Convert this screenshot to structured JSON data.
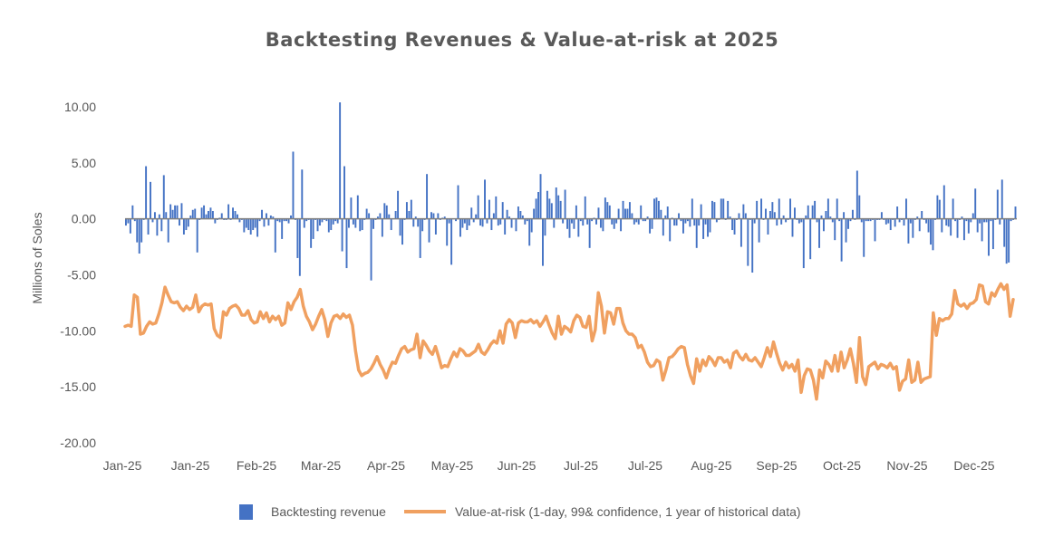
{
  "chart_data": {
    "type": "bar+line",
    "title": "Backtesting Revenues & Value-at-risk at 2025",
    "xlabel": "",
    "ylabel": "Millions of Soles",
    "ylim": [
      -20,
      10
    ],
    "yticks": [
      10,
      5,
      0,
      -5,
      -10,
      -15,
      -20
    ],
    "ytick_labels": [
      "10.00",
      "5.00",
      "0.00",
      "-5.00",
      "-10.00",
      "-15.00",
      "-20.00"
    ],
    "xtick_labels": [
      "Jan-25",
      "Jan-25",
      "Feb-25",
      "Mar-25",
      "Apr-25",
      "May-25",
      "Jun-25",
      "Jul-25",
      "Jul-25",
      "Aug-25",
      "Sep-25",
      "Oct-25",
      "Nov-25",
      "Dec-25"
    ],
    "grid": false,
    "legend_position": "bottom",
    "colors": {
      "bars": "#4472C4",
      "line": "#ED7D31",
      "zero_line": "#808080",
      "text": "#595959"
    },
    "series": [
      {
        "name": "Backtesting revenue",
        "type": "bar",
        "values": [
          -0.6,
          -0.4,
          -1.3,
          1.2,
          -0.2,
          -2.1,
          -3.1,
          -2.1,
          -0.1,
          4.7,
          -1.4,
          3.3,
          -0.3,
          0.6,
          -1.5,
          0.4,
          -1.1,
          3.9,
          0.6,
          -2.1,
          1.3,
          0.8,
          1.2,
          1.2,
          -0.6,
          1.4,
          -1.4,
          -1.0,
          -0.7,
          0.3,
          0.8,
          0.9,
          -3.0,
          -0.1,
          1.0,
          1.2,
          0.4,
          0.7,
          1.0,
          0.7,
          -0.4,
          -0.1,
          0.1,
          0.5,
          -0.1,
          -0.1,
          1.3,
          -0.1,
          1.0,
          0.7,
          0.4,
          -0.3,
          -0.1,
          -1.2,
          -0.8,
          -1.0,
          -1.4,
          -1.0,
          -0.8,
          -1.6,
          -0.2,
          0.8,
          -0.7,
          0.5,
          -0.6,
          0.3,
          0.2,
          -3.0,
          -0.2,
          -0.3,
          -1.8,
          -0.2,
          -0.2,
          -0.4,
          0.3,
          6.0,
          -0.1,
          -3.5,
          -5.1,
          4.4,
          -0.8,
          -0.2,
          -0.1,
          -2.6,
          -1.8,
          -0.1,
          -1.1,
          -0.6,
          -0.3,
          -0.1,
          -0.2,
          -1.2,
          -1.0,
          -0.5,
          -0.2,
          -0.4,
          10.4,
          -2.9,
          4.7,
          -4.4,
          -0.8,
          1.9,
          -0.5,
          -0.8,
          2.1,
          -1.1,
          -1.0,
          -0.1,
          0.9,
          0.5,
          -5.5,
          -0.9,
          -0.1,
          0.2,
          0.5,
          -1.6,
          1.4,
          1.2,
          0.4,
          -1.0,
          0.0,
          0.7,
          2.5,
          -1.5,
          -2.3,
          -0.1,
          1.5,
          0.7,
          1.7,
          -0.7,
          0.2,
          -0.7,
          -3.5,
          -1.1,
          -0.1,
          4.0,
          -2.1,
          0.6,
          0.5,
          -1.4,
          0.5,
          -0.1,
          0.1,
          0.2,
          -2.4,
          -0.4,
          -4.1,
          0.0,
          -0.2,
          3.0,
          -1.6,
          -0.8,
          -0.4,
          -1.0,
          -0.6,
          1.0,
          -0.3,
          0.4,
          2.1,
          -0.6,
          -0.7,
          3.5,
          -0.4,
          1.7,
          -1.0,
          0.5,
          2.0,
          -0.6,
          -0.5,
          1.5,
          -1.4,
          0.8,
          0.2,
          -0.8,
          0.0,
          -1.1,
          1.1,
          0.7,
          0.3,
          -0.5,
          -0.2,
          -2.4,
          -1.2,
          0.9,
          1.8,
          2.4,
          4.0,
          -4.2,
          -1.5,
          2.5,
          1.8,
          1.4,
          -0.8,
          2.8,
          2.1,
          1.6,
          -0.4,
          2.6,
          -0.9,
          -1.7,
          -0.4,
          -0.9,
          1.2,
          -1.6,
          -0.2,
          -0.6,
          2.0,
          -0.5,
          -2.6,
          -0.2,
          0.1,
          -0.5,
          1.0,
          -0.8,
          -1.1,
          1.9,
          1.5,
          1.2,
          -0.5,
          -0.9,
          -0.4,
          0.9,
          -1.1,
          1.6,
          0.9,
          0.9,
          1.5,
          0.5,
          -0.5,
          -0.3,
          -0.5,
          1.2,
          -0.2,
          -0.2,
          0.2,
          -1.3,
          -0.9,
          1.8,
          1.9,
          1.6,
          0.8,
          -1.5,
          0.3,
          1.1,
          -2.0,
          0.1,
          -0.6,
          -0.6,
          0.5,
          -0.2,
          -1.3,
          -0.4,
          -0.2,
          -0.7,
          1.8,
          -0.6,
          -2.6,
          -0.6,
          1.3,
          -1.8,
          -0.5,
          -1.6,
          -1.2,
          1.6,
          1.5,
          -0.3,
          -0.1,
          1.8,
          1.8,
          -0.1,
          1.6,
          0.2,
          -1.0,
          -1.4,
          -0.1,
          0.5,
          -2.5,
          1.3,
          0.5,
          -4.2,
          -0.1,
          -4.8,
          -0.4,
          1.6,
          -2.1,
          1.8,
          -0.1,
          0.9,
          -1.4,
          0.7,
          1.5,
          0.6,
          -0.6,
          1.8,
          -0.5,
          0.3,
          -0.3,
          -0.1,
          1.8,
          -1.6,
          1.0,
          -0.1,
          -0.4,
          -0.3,
          -4.4,
          0.3,
          1.2,
          -3.6,
          1.2,
          1.6,
          -0.3,
          -2.6,
          0.3,
          -1.1,
          0.7,
          1.8,
          0.2,
          -0.3,
          -1.9,
          1.8,
          -0.2,
          -3.8,
          0.6,
          -2.1,
          -0.9,
          -0.2,
          0.8,
          -0.1,
          4.3,
          2.1,
          -0.3,
          -3.4,
          -0.2,
          -0.2,
          -0.2,
          -0.1,
          -2.0,
          -0.1,
          -0.1,
          0.6,
          -0.1,
          -0.5,
          -0.4,
          -1.0,
          -0.1,
          -0.7,
          1.1,
          -0.3,
          -0.1,
          -0.6,
          1.8,
          -2.2,
          -0.4,
          -1.7,
          -0.1,
          0.2,
          -1.1,
          0.7,
          -0.1,
          -0.4,
          -1.2,
          -2.3,
          -2.8,
          -0.1,
          2.1,
          1.7,
          -1.2,
          3.0,
          -0.6,
          -0.7,
          -1.5,
          1.8,
          -0.2,
          -1.7,
          -0.1,
          0.2,
          -1.9,
          -0.2,
          -1.3,
          -0.3,
          0.5,
          2.7,
          -1.2,
          -0.4,
          -2.0,
          -0.3,
          -0.3,
          -3.3,
          -0.2,
          -2.7,
          -0.1,
          2.6,
          -0.5,
          3.5,
          -2.5,
          -4.0,
          -3.9,
          -0.2,
          -0.1,
          1.1
        ],
        "note": "daily values, approx. one per trading day through the year"
      },
      {
        "name": "Value-at-risk (1-day, 99& confidence, 1 year of historical data)",
        "type": "line",
        "values": [
          -9.6,
          -9.5,
          -9.6,
          -6.8,
          -7.0,
          -10.3,
          -10.2,
          -9.6,
          -9.2,
          -9.4,
          -9.3,
          -8.5,
          -7.5,
          -6.1,
          -6.8,
          -7.4,
          -7.5,
          -7.4,
          -7.9,
          -8.2,
          -7.8,
          -8.1,
          -7.9,
          -6.8,
          -8.3,
          -7.8,
          -7.6,
          -7.7,
          -7.6,
          -9.8,
          -10.4,
          -10.6,
          -8.3,
          -8.6,
          -8.0,
          -7.8,
          -7.7,
          -8.0,
          -8.6,
          -8.6,
          -8.2,
          -9.0,
          -9.3,
          -9.2,
          -8.3,
          -8.9,
          -8.4,
          -9.2,
          -8.7,
          -9.0,
          -8.7,
          -9.5,
          -9.3,
          -7.5,
          -8.1,
          -7.4,
          -7.0,
          -6.3,
          -7.8,
          -8.7,
          -9.2,
          -9.9,
          -9.4,
          -8.7,
          -8.1,
          -9.0,
          -10.5,
          -9.3,
          -8.7,
          -8.6,
          -8.9,
          -8.5,
          -8.8,
          -8.6,
          -9.5,
          -11.8,
          -13.5,
          -14.0,
          -13.8,
          -13.7,
          -13.4,
          -12.9,
          -12.3,
          -13.0,
          -13.5,
          -14.2,
          -13.4,
          -12.8,
          -12.9,
          -12.2,
          -11.6,
          -11.4,
          -11.9,
          -11.7,
          -11.6,
          -10.3,
          -12.4,
          -10.9,
          -11.3,
          -11.8,
          -12.1,
          -11.4,
          -12.3,
          -13.3,
          -13.1,
          -13.2,
          -12.5,
          -11.9,
          -12.3,
          -11.6,
          -11.8,
          -12.2,
          -12.2,
          -12.0,
          -11.8,
          -11.2,
          -11.9,
          -12.1,
          -11.7,
          -11.2,
          -10.9,
          -11.1,
          -10.0,
          -11.1,
          -9.4,
          -9.0,
          -9.3,
          -10.6,
          -9.3,
          -9.1,
          -9.2,
          -9.2,
          -9.0,
          -9.3,
          -9.1,
          -9.6,
          -9.2,
          -8.7,
          -9.5,
          -10.2,
          -10.7,
          -8.7,
          -10.3,
          -9.6,
          -9.8,
          -10.1,
          -9.1,
          -8.6,
          -8.8,
          -9.6,
          -9.7,
          -8.7,
          -10.9,
          -9.9,
          -6.6,
          -7.8,
          -10.2,
          -8.3,
          -8.4,
          -9.4,
          -8.0,
          -8.0,
          -9.3,
          -10.0,
          -10.3,
          -10.3,
          -10.6,
          -11.5,
          -11.3,
          -11.9,
          -12.8,
          -13.2,
          -13.1,
          -12.6,
          -12.8,
          -14.4,
          -13.5,
          -12.4,
          -12.3,
          -12.0,
          -11.6,
          -11.4,
          -11.5,
          -13.0,
          -14.0,
          -14.7,
          -12.5,
          -13.6,
          -12.6,
          -13.1,
          -12.3,
          -12.6,
          -13.1,
          -12.4,
          -12.4,
          -12.8,
          -12.6,
          -13.3,
          -12.0,
          -11.8,
          -12.3,
          -12.6,
          -12.1,
          -12.6,
          -12.7,
          -12.4,
          -12.8,
          -13.2,
          -12.4,
          -11.5,
          -12.3,
          -11.0,
          -12.0,
          -12.9,
          -13.5,
          -12.8,
          -13.3,
          -13.0,
          -13.6,
          -12.6,
          -15.5,
          -14.0,
          -13.4,
          -13.5,
          -14.4,
          -16.1,
          -13.5,
          -14.2,
          -12.7,
          -13.0,
          -13.6,
          -12.2,
          -13.6,
          -11.9,
          -13.3,
          -12.6,
          -11.6,
          -12.9,
          -14.6,
          -10.6,
          -14.1,
          -14.8,
          -13.2,
          -13.0,
          -12.8,
          -13.4,
          -13.0,
          -13.1,
          -13.3,
          -12.9,
          -13.4,
          -13.2,
          -15.3,
          -14.5,
          -14.3,
          -12.6,
          -14.6,
          -14.4,
          -12.8,
          -14.6,
          -14.3,
          -14.2,
          -14.1,
          -8.4,
          -10.4,
          -8.9,
          -9.1,
          -8.9,
          -8.9,
          -8.5,
          -6.4,
          -7.6,
          -7.8,
          -7.6,
          -8.0,
          -7.6,
          -7.5,
          -7.2,
          -5.9,
          -6.0,
          -7.4,
          -7.6,
          -6.6,
          -6.9,
          -6.3,
          -5.8,
          -6.3,
          -5.9,
          -8.7,
          -7.2
        ],
        "note": "smoothed daily VaR, approx."
      }
    ]
  },
  "legend": {
    "bar_label": "Backtesting revenue",
    "line_label": "Value-at-risk (1-day, 99& confidence, 1 year of historical data)"
  }
}
